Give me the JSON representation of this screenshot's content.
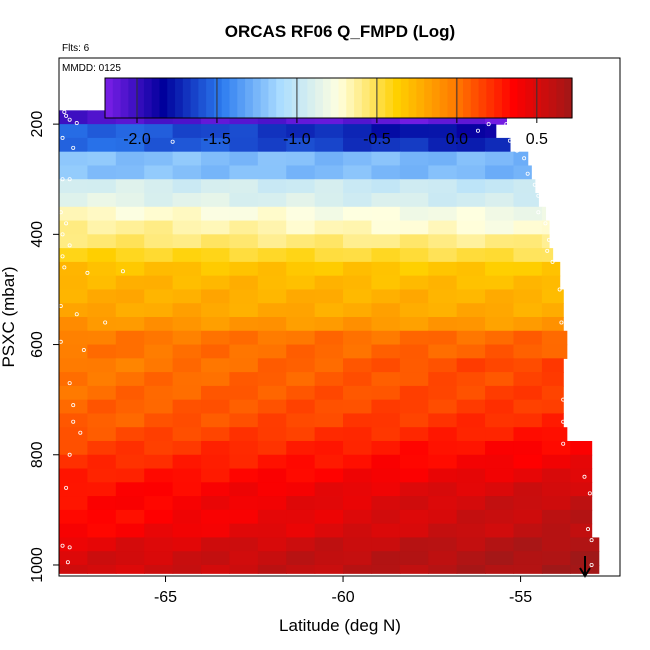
{
  "chart_data": {
    "type": "heatmap",
    "title": "ORCAS RF06 Q_FMPD (Log)",
    "flights_label": "Flts: 6",
    "date_label": "MMDD: 0125",
    "xlabel": "Latitude (deg N)",
    "ylabel": "PSXC (mbar)",
    "xlim": [
      -68.0,
      -52.2
    ],
    "ylim": [
      1020,
      80
    ],
    "x_ticks": [
      "-65",
      "-60",
      "-55"
    ],
    "x_tick_values": [
      -65,
      -60,
      -55
    ],
    "y_ticks": [
      "200",
      "400",
      "600",
      "800",
      "1000"
    ],
    "y_tick_values": [
      200,
      400,
      600,
      800,
      1000
    ],
    "colorbar": {
      "range": [
        -2.2,
        0.72
      ],
      "ticks": [
        "-2.0",
        "-1.5",
        "-1.0",
        "-0.5",
        "0.0",
        "0.5"
      ],
      "tick_values": [
        -2.0,
        -1.5,
        -1.0,
        -0.5,
        0.0,
        0.5
      ],
      "colors": [
        "#7c1fe8",
        "#00009c",
        "#2c7cf0",
        "#aadcff",
        "#ffffe0",
        "#ffd000",
        "#ff7a00",
        "#ff0000",
        "#a01818"
      ]
    },
    "layers": [
      {
        "p_top": 175,
        "p_bottom": 200,
        "lat_max": -55.4,
        "lat_start": -68.0,
        "val_start": -2.05,
        "lat_end": -55.4,
        "val_end": -2.15
      },
      {
        "p_top": 200,
        "p_bottom": 225,
        "lat_max": -55.7,
        "lat_start": -68.0,
        "val_start": -1.5,
        "lat_end": -55.7,
        "val_end": -1.85
      },
      {
        "p_top": 225,
        "p_bottom": 250,
        "lat_max": -55.3,
        "lat_start": -68.0,
        "val_start": -1.5,
        "lat_end": -55.3,
        "val_end": -1.75
      },
      {
        "p_top": 250,
        "p_bottom": 275,
        "lat_max": -54.8,
        "lat_start": -68.0,
        "val_start": -1.2,
        "lat_end": -54.8,
        "val_end": -1.25
      },
      {
        "p_top": 275,
        "p_bottom": 300,
        "lat_max": -54.7,
        "lat_start": -68.0,
        "val_start": -1.2,
        "lat_end": -54.7,
        "val_end": -1.25
      },
      {
        "p_top": 300,
        "p_bottom": 325,
        "lat_max": -54.6,
        "lat_start": -68.0,
        "val_start": -0.9,
        "lat_end": -54.6,
        "val_end": -1.0
      },
      {
        "p_top": 325,
        "p_bottom": 350,
        "lat_max": -54.5,
        "lat_start": -68.0,
        "val_start": -0.85,
        "lat_end": -54.5,
        "val_end": -0.95
      },
      {
        "p_top": 350,
        "p_bottom": 375,
        "lat_max": -54.3,
        "lat_start": -68.0,
        "val_start": -0.7,
        "lat_end": -54.3,
        "val_end": -0.8
      },
      {
        "p_top": 375,
        "p_bottom": 400,
        "lat_max": -54.2,
        "lat_start": -68.0,
        "val_start": -0.6,
        "lat_end": -54.2,
        "val_end": -0.75
      },
      {
        "p_top": 400,
        "p_bottom": 425,
        "lat_max": -54.2,
        "lat_start": -68.0,
        "val_start": -0.55,
        "lat_end": -54.2,
        "val_end": -0.6
      },
      {
        "p_top": 425,
        "p_bottom": 450,
        "lat_max": -54.1,
        "lat_start": -68.0,
        "val_start": -0.4,
        "lat_end": -54.1,
        "val_end": -0.5
      },
      {
        "p_top": 450,
        "p_bottom": 475,
        "lat_max": -53.9,
        "lat_start": -68.0,
        "val_start": -0.3,
        "lat_end": -53.9,
        "val_end": -0.35
      },
      {
        "p_top": 475,
        "p_bottom": 500,
        "lat_max": -53.9,
        "lat_start": -68.0,
        "val_start": -0.25,
        "lat_end": -53.9,
        "val_end": -0.3
      },
      {
        "p_top": 500,
        "p_bottom": 525,
        "lat_max": -53.8,
        "lat_start": -68.0,
        "val_start": -0.22,
        "lat_end": -53.8,
        "val_end": -0.25
      },
      {
        "p_top": 525,
        "p_bottom": 550,
        "lat_max": -53.8,
        "lat_start": -68.0,
        "val_start": -0.2,
        "lat_end": -53.8,
        "val_end": -0.22
      },
      {
        "p_top": 550,
        "p_bottom": 575,
        "lat_max": -53.8,
        "lat_start": -68.0,
        "val_start": -0.12,
        "lat_end": -53.8,
        "val_end": -0.15
      },
      {
        "p_top": 575,
        "p_bottom": 600,
        "lat_max": -53.7,
        "lat_start": -68.0,
        "val_start": -0.02,
        "lat_end": -53.7,
        "val_end": 0.05
      },
      {
        "p_top": 600,
        "p_bottom": 625,
        "lat_max": -53.7,
        "lat_start": -68.0,
        "val_start": 0.0,
        "lat_end": -53.7,
        "val_end": 0.08
      },
      {
        "p_top": 625,
        "p_bottom": 650,
        "lat_max": -53.8,
        "lat_start": -68.0,
        "val_start": -0.05,
        "lat_end": -53.8,
        "val_end": 0.18
      },
      {
        "p_top": 650,
        "p_bottom": 675,
        "lat_max": -53.8,
        "lat_start": -68.0,
        "val_start": 0.0,
        "lat_end": -53.8,
        "val_end": 0.15
      },
      {
        "p_top": 675,
        "p_bottom": 700,
        "lat_max": -53.8,
        "lat_start": -68.0,
        "val_start": 0.02,
        "lat_end": -53.8,
        "val_end": 0.18
      },
      {
        "p_top": 700,
        "p_bottom": 725,
        "lat_max": -53.8,
        "lat_start": -68.0,
        "val_start": 0.05,
        "lat_end": -53.8,
        "val_end": 0.2
      },
      {
        "p_top": 725,
        "p_bottom": 750,
        "lat_max": -53.8,
        "lat_start": -68.0,
        "val_start": 0.05,
        "lat_end": -53.8,
        "val_end": 0.25
      },
      {
        "p_top": 750,
        "p_bottom": 775,
        "lat_max": -53.7,
        "lat_start": -68.0,
        "val_start": 0.1,
        "lat_end": -53.7,
        "val_end": 0.3
      },
      {
        "p_top": 775,
        "p_bottom": 800,
        "lat_max": -53.0,
        "lat_start": -68.0,
        "val_start": 0.15,
        "lat_end": -53.0,
        "val_end": 0.38
      },
      {
        "p_top": 800,
        "p_bottom": 825,
        "lat_max": -53.0,
        "lat_start": -68.0,
        "val_start": 0.2,
        "lat_end": -53.0,
        "val_end": 0.42
      },
      {
        "p_top": 825,
        "p_bottom": 850,
        "lat_max": -53.0,
        "lat_start": -68.0,
        "val_start": 0.25,
        "lat_end": -53.0,
        "val_end": 0.48
      },
      {
        "p_top": 850,
        "p_bottom": 875,
        "lat_max": -53.0,
        "lat_start": -68.0,
        "val_start": 0.3,
        "lat_end": -53.0,
        "val_end": 0.55
      },
      {
        "p_top": 875,
        "p_bottom": 900,
        "lat_max": -53.0,
        "lat_start": -68.0,
        "val_start": 0.32,
        "lat_end": -53.0,
        "val_end": 0.6
      },
      {
        "p_top": 900,
        "p_bottom": 925,
        "lat_max": -53.0,
        "lat_start": -68.0,
        "val_start": 0.3,
        "lat_end": -53.0,
        "val_end": 0.62
      },
      {
        "p_top": 925,
        "p_bottom": 950,
        "lat_max": -53.0,
        "lat_start": -68.0,
        "val_start": 0.35,
        "lat_end": -53.0,
        "val_end": 0.62
      },
      {
        "p_top": 950,
        "p_bottom": 975,
        "lat_max": -52.8,
        "lat_start": -68.0,
        "val_start": 0.45,
        "lat_end": -52.8,
        "val_end": 0.68
      },
      {
        "p_top": 975,
        "p_bottom": 1000,
        "lat_max": -52.8,
        "lat_start": -68.0,
        "val_start": 0.5,
        "lat_end": -52.8,
        "val_end": 0.7
      },
      {
        "p_top": 1000,
        "p_bottom": 1015,
        "lat_max": -52.8,
        "lat_start": -68.0,
        "val_start": 0.5,
        "lat_end": -52.8,
        "val_end": 0.7
      }
    ],
    "samples": [
      [
        -67.85,
        178
      ],
      [
        -67.8,
        185
      ],
      [
        -67.7,
        192
      ],
      [
        -67.5,
        198
      ],
      [
        -67.9,
        225
      ],
      [
        -67.6,
        243
      ],
      [
        -67.9,
        300
      ],
      [
        -67.7,
        300
      ],
      [
        -67.95,
        360
      ],
      [
        -67.8,
        380
      ],
      [
        -67.9,
        400
      ],
      [
        -67.7,
        420
      ],
      [
        -67.9,
        440
      ],
      [
        -67.85,
        460
      ],
      [
        -67.2,
        470
      ],
      [
        -66.2,
        467
      ],
      [
        -67.95,
        530
      ],
      [
        -67.5,
        545
      ],
      [
        -66.7,
        560
      ],
      [
        -67.95,
        595
      ],
      [
        -67.3,
        610
      ],
      [
        -67.7,
        670
      ],
      [
        -67.6,
        710
      ],
      [
        -67.6,
        740
      ],
      [
        -67.4,
        760
      ],
      [
        -67.7,
        800
      ],
      [
        -67.8,
        860
      ],
      [
        -67.9,
        965
      ],
      [
        -67.7,
        968
      ],
      [
        -67.75,
        995
      ],
      [
        -63.8,
        178
      ],
      [
        -61.5,
        178
      ],
      [
        -59.2,
        178
      ],
      [
        -57.0,
        178
      ],
      [
        -55.6,
        185
      ],
      [
        -55.4,
        200
      ],
      [
        -55.9,
        200
      ],
      [
        -65.5,
        178
      ],
      [
        -62.5,
        178
      ],
      [
        -60.5,
        178
      ],
      [
        -64.8,
        232
      ],
      [
        -56.2,
        212
      ],
      [
        -55.3,
        230
      ],
      [
        -55.1,
        248
      ],
      [
        -54.9,
        262
      ],
      [
        -54.8,
        290
      ],
      [
        -54.6,
        310
      ],
      [
        -54.5,
        330
      ],
      [
        -54.5,
        360
      ],
      [
        -54.3,
        380
      ],
      [
        -54.2,
        410
      ],
      [
        -54.25,
        430
      ],
      [
        -54.1,
        450
      ],
      [
        -53.9,
        500
      ],
      [
        -53.85,
        560
      ],
      [
        -53.7,
        630
      ],
      [
        -53.8,
        700
      ],
      [
        -53.8,
        740
      ],
      [
        -53.8,
        780
      ],
      [
        -53.2,
        840
      ],
      [
        -53.05,
        870
      ],
      [
        -53.1,
        935
      ],
      [
        -53.0,
        955
      ],
      [
        -53.0,
        1000
      ]
    ]
  }
}
